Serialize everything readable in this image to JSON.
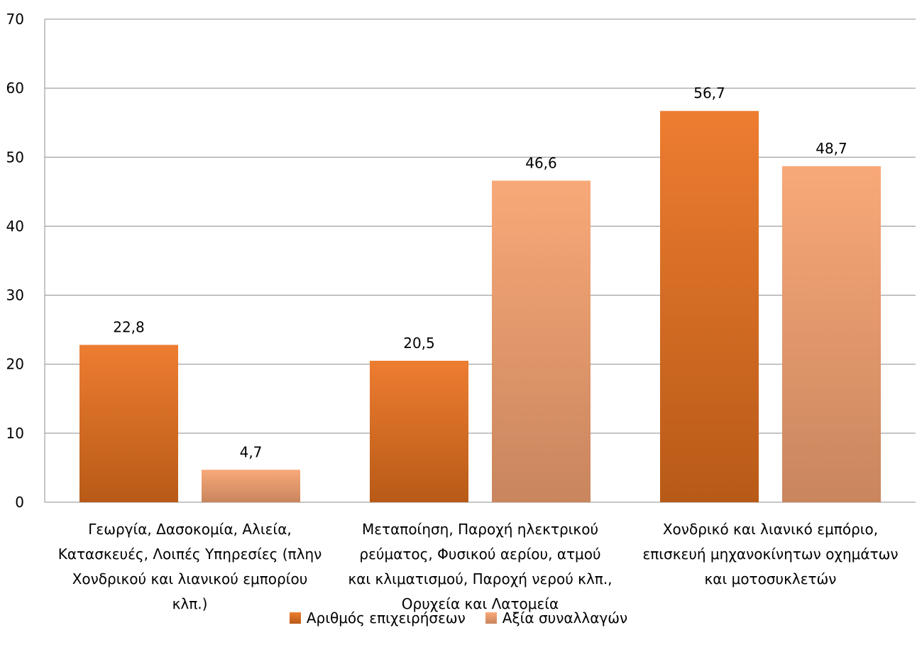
{
  "chart_data": {
    "type": "bar",
    "title": "",
    "xlabel": "",
    "ylabel": "",
    "ylim": [
      0,
      70
    ],
    "yticks": [
      0,
      10,
      20,
      30,
      40,
      50,
      60,
      70
    ],
    "grid": true,
    "legend_position": "bottom",
    "categories": [
      [
        "Γεωργία, Δασοκομία, Αλιεία,",
        "Κατασκευές, Λοιπές Υπηρεσίες (πλην",
        "Χονδρικού και λιανικού εμπορίου",
        "κλπ.)"
      ],
      [
        "Μεταποίηση, Παροχή ηλεκτρικού",
        "ρεύματος, Φυσικού αερίου, ατμού",
        "και κλιματισμού, Παροχή νερού κλπ.,",
        "Ορυχεία και Λατομεία"
      ],
      [
        "Χονδρικό και λιανικό εμπόριο,",
        "επισκευή μηχανοκίνητων οχημάτων",
        "και μοτοσυκλετών"
      ]
    ],
    "series": [
      {
        "name": "Αριθμός επιχειρήσεων",
        "values": [
          22.8,
          20.5,
          56.7
        ],
        "labels": [
          "22,8",
          "20,5",
          "56,7"
        ],
        "color_top": "#ED7D31",
        "color_bottom": "#B85A17"
      },
      {
        "name": "Αξία συναλλαγών",
        "values": [
          4.7,
          46.6,
          48.7
        ],
        "labels": [
          "4,7",
          "46,6",
          "48,7"
        ],
        "color_top": "#F8A978",
        "color_bottom": "#C9855E"
      }
    ]
  }
}
